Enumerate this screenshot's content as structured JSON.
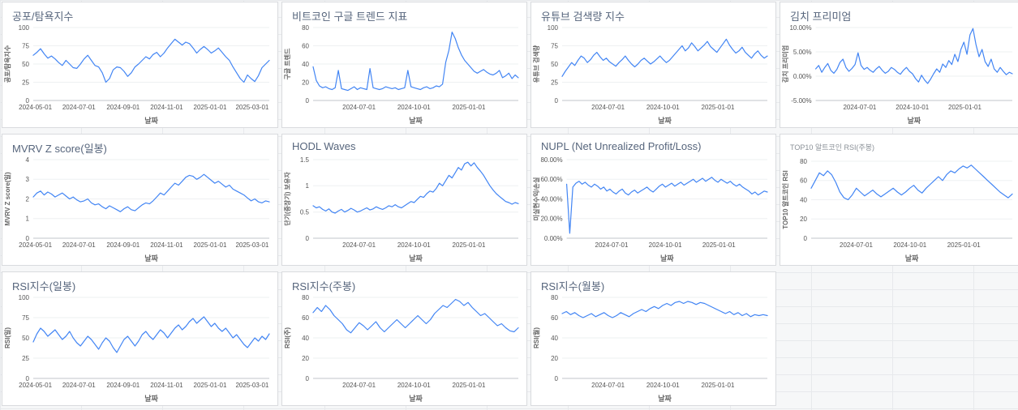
{
  "style": {
    "line_color": "#4285f4",
    "title_color": "#56657c",
    "axis_label_color": "#666666",
    "tick_label_color": "#555555",
    "card_background": "#ffffff",
    "page_background": "#f6f7f8"
  },
  "chart_data": [
    {
      "id": "fear-greed-index",
      "type": "line",
      "title": "공포/탐욕지수",
      "xlabel": "날짜",
      "ylabel": "공포/탐욕지수",
      "ylim": [
        0,
        100
      ],
      "yticks": [
        0,
        25,
        50,
        75,
        100
      ],
      "ytick_labels": [
        "0",
        "25",
        "50",
        "75",
        "100"
      ],
      "x_domain": [
        "2024-04-28",
        "2025-03-25"
      ],
      "xticks": [
        "2024-05-01",
        "2024-07-01",
        "2024-09-01",
        "2024-11-01",
        "2025-01-01",
        "2025-03-01"
      ],
      "values": [
        62,
        66,
        71,
        64,
        58,
        61,
        57,
        52,
        48,
        55,
        50,
        45,
        44,
        50,
        57,
        62,
        55,
        48,
        46,
        38,
        25,
        30,
        42,
        46,
        45,
        40,
        33,
        38,
        46,
        50,
        55,
        60,
        57,
        63,
        66,
        60,
        65,
        72,
        78,
        84,
        80,
        76,
        80,
        78,
        72,
        65,
        70,
        74,
        70,
        65,
        68,
        72,
        66,
        60,
        55,
        46,
        38,
        30,
        25,
        35,
        30,
        26,
        34,
        45,
        50,
        55
      ]
    },
    {
      "id": "bitcoin-google-trend",
      "type": "line",
      "title": "비트코인 구글 트렌드 지표",
      "xlabel": "날짜",
      "ylabel": "구글 트렌드",
      "ylim": [
        0,
        80
      ],
      "yticks": [
        0,
        20,
        40,
        60,
        80
      ],
      "ytick_labels": [
        "0",
        "20",
        "40",
        "60",
        "80"
      ],
      "x_domain": [
        "2024-04-15",
        "2025-03-25"
      ],
      "xticks": [
        "2024-07-01",
        "2024-10-01",
        "2025-01-01"
      ],
      "values": [
        37,
        22,
        16,
        14,
        15,
        13,
        12,
        14,
        33,
        13,
        12,
        11,
        13,
        15,
        12,
        14,
        13,
        12,
        35,
        14,
        13,
        12,
        13,
        15,
        14,
        13,
        14,
        12,
        13,
        14,
        33,
        15,
        14,
        13,
        12,
        14,
        15,
        13,
        14,
        16,
        15,
        18,
        42,
        55,
        75,
        68,
        58,
        50,
        44,
        40,
        36,
        32,
        30,
        32,
        34,
        31,
        29,
        28,
        30,
        33,
        25,
        27,
        30,
        24,
        28,
        25
      ]
    },
    {
      "id": "youtube-search-index",
      "type": "line",
      "title": "유튜브 검색량 지수",
      "xlabel": "날짜",
      "ylabel": "유튜브 검색량",
      "ylim": [
        0,
        100
      ],
      "yticks": [
        0,
        25,
        50,
        75,
        100
      ],
      "ytick_labels": [
        "0",
        "25",
        "50",
        "75",
        "100"
      ],
      "x_domain": [
        "2024-04-15",
        "2025-03-25"
      ],
      "xticks": [
        "2024-07-01",
        "2024-10-01",
        "2025-01-01"
      ],
      "values": [
        33,
        40,
        46,
        52,
        48,
        55,
        61,
        58,
        52,
        56,
        62,
        66,
        60,
        55,
        58,
        53,
        50,
        47,
        52,
        56,
        61,
        55,
        50,
        46,
        50,
        55,
        58,
        54,
        50,
        53,
        57,
        61,
        56,
        52,
        55,
        60,
        65,
        70,
        75,
        68,
        72,
        79,
        74,
        68,
        72,
        76,
        81,
        74,
        70,
        66,
        72,
        78,
        84,
        76,
        70,
        65,
        68,
        73,
        66,
        62,
        58,
        64,
        68,
        62,
        58,
        61
      ]
    },
    {
      "id": "kimchi-premium",
      "type": "line",
      "title": "김치 프리미엄",
      "xlabel": "날짜",
      "ylabel": "김치 프리미엄",
      "ylim": [
        -5,
        10
      ],
      "yticks": [
        -5,
        0,
        5,
        10
      ],
      "ytick_labels": [
        "-5.00%",
        "0.00%",
        "5.00%",
        "10.00%"
      ],
      "x_domain": [
        "2024-04-15",
        "2025-03-25"
      ],
      "xticks": [
        "2024-07-01",
        "2024-10-01",
        "2025-01-01"
      ],
      "values": [
        1.5,
        2.2,
        0.8,
        1.8,
        2.6,
        1.2,
        0.6,
        1.4,
        2.8,
        3.5,
        1.8,
        1.0,
        1.6,
        2.4,
        4.8,
        2.2,
        1.4,
        1.8,
        1.2,
        0.8,
        1.5,
        2.0,
        1.2,
        0.6,
        1.0,
        1.8,
        1.4,
        0.8,
        0.4,
        1.2,
        1.8,
        1.0,
        0.5,
        -0.5,
        -1.2,
        0.2,
        -0.8,
        -1.5,
        -0.6,
        0.5,
        1.5,
        0.8,
        2.5,
        1.8,
        3.2,
        2.4,
        4.5,
        3.0,
        5.5,
        7.0,
        4.5,
        8.5,
        9.8,
        6.5,
        4.0,
        5.5,
        3.0,
        2.0,
        3.5,
        1.5,
        0.8,
        1.8,
        1.0,
        0.3,
        0.8,
        0.5
      ]
    },
    {
      "id": "mvrv-z-score-daily",
      "type": "line",
      "title": "MVRV Z score(일봉)",
      "xlabel": "날짜",
      "ylabel": "MVRV Z score(일)",
      "ylim": [
        0,
        4
      ],
      "yticks": [
        0,
        1,
        2,
        3,
        4
      ],
      "ytick_labels": [
        "0",
        "1",
        "2",
        "3",
        "4"
      ],
      "x_domain": [
        "2024-04-28",
        "2025-03-25"
      ],
      "xticks": [
        "2024-05-01",
        "2024-07-01",
        "2024-09-01",
        "2024-11-01",
        "2025-01-01",
        "2025-03-01"
      ],
      "values": [
        2.1,
        2.3,
        2.4,
        2.2,
        2.35,
        2.25,
        2.1,
        2.2,
        2.3,
        2.15,
        2.0,
        2.1,
        1.95,
        1.85,
        1.9,
        2.0,
        1.8,
        1.7,
        1.75,
        1.6,
        1.5,
        1.65,
        1.55,
        1.45,
        1.35,
        1.5,
        1.6,
        1.45,
        1.4,
        1.55,
        1.7,
        1.8,
        1.75,
        1.9,
        2.1,
        2.3,
        2.2,
        2.4,
        2.6,
        2.8,
        2.7,
        2.9,
        3.1,
        3.2,
        3.15,
        3.0,
        3.1,
        3.25,
        3.1,
        2.95,
        2.8,
        2.9,
        2.75,
        2.6,
        2.7,
        2.5,
        2.4,
        2.3,
        2.2,
        2.05,
        1.9,
        2.0,
        1.85,
        1.8,
        1.9,
        1.85
      ]
    },
    {
      "id": "hodl-waves",
      "type": "line",
      "title": "HODL Waves",
      "xlabel": "날짜",
      "ylabel": "단기(중장기) 보유자",
      "ylim": [
        0,
        1.5
      ],
      "yticks": [
        0,
        0.5,
        1,
        1.5
      ],
      "ytick_labels": [
        "0",
        "0.5",
        "1",
        "1.5"
      ],
      "x_domain": [
        "2024-04-15",
        "2025-03-25"
      ],
      "xticks": [
        "2024-07-01",
        "2024-10-01",
        "2025-01-01"
      ],
      "values": [
        0.62,
        0.58,
        0.6,
        0.55,
        0.52,
        0.56,
        0.5,
        0.48,
        0.52,
        0.55,
        0.5,
        0.53,
        0.57,
        0.54,
        0.5,
        0.52,
        0.55,
        0.58,
        0.54,
        0.56,
        0.6,
        0.57,
        0.55,
        0.58,
        0.62,
        0.6,
        0.64,
        0.6,
        0.58,
        0.62,
        0.66,
        0.7,
        0.68,
        0.74,
        0.8,
        0.78,
        0.85,
        0.9,
        0.88,
        0.95,
        1.05,
        1.0,
        1.1,
        1.2,
        1.15,
        1.25,
        1.35,
        1.3,
        1.42,
        1.45,
        1.38,
        1.44,
        1.35,
        1.28,
        1.2,
        1.1,
        1.0,
        0.92,
        0.85,
        0.8,
        0.75,
        0.7,
        0.68,
        0.65,
        0.68,
        0.66
      ]
    },
    {
      "id": "nupl",
      "type": "line",
      "title": "NUPL (Net Unrealized Profit/Loss)",
      "xlabel": "날짜",
      "ylabel": "미실현수익/손실",
      "ylim": [
        0,
        80
      ],
      "yticks": [
        0,
        20,
        40,
        60,
        80
      ],
      "ytick_labels": [
        "0.00%",
        "20.00%",
        "40.00%",
        "60.00%",
        "80.00%"
      ],
      "x_domain": [
        "2024-04-15",
        "2025-03-25"
      ],
      "xticks": [
        "2024-07-01",
        "2024-10-01",
        "2025-01-01"
      ],
      "values": [
        55,
        5,
        52,
        56,
        58,
        55,
        57,
        54,
        52,
        55,
        53,
        50,
        52,
        48,
        50,
        47,
        45,
        48,
        50,
        46,
        44,
        47,
        49,
        46,
        48,
        50,
        52,
        49,
        47,
        50,
        53,
        55,
        52,
        54,
        56,
        53,
        55,
        57,
        54,
        56,
        58,
        60,
        57,
        59,
        61,
        58,
        60,
        62,
        59,
        57,
        60,
        58,
        56,
        58,
        55,
        53,
        55,
        52,
        50,
        48,
        45,
        47,
        44,
        46,
        48,
        47
      ]
    },
    {
      "id": "top10-altcoin-rsi-weekly",
      "type": "line",
      "title": "TOP10 알트코인 RSI(주봉)",
      "xlabel": "날짜",
      "ylabel": "TOP10 알트코인 RSI",
      "ylim": [
        0,
        80
      ],
      "yticks": [
        0,
        20,
        40,
        60,
        80
      ],
      "ytick_labels": [
        "0",
        "20",
        "40",
        "60",
        "80"
      ],
      "x_domain": [
        "2024-04-15",
        "2025-03-25"
      ],
      "xticks": [
        "2024-07-01",
        "2024-10-01",
        "2025-01-01"
      ],
      "values": [
        52,
        60,
        68,
        65,
        70,
        66,
        58,
        48,
        42,
        40,
        45,
        52,
        48,
        44,
        47,
        50,
        46,
        43,
        46,
        49,
        52,
        48,
        45,
        48,
        52,
        55,
        50,
        47,
        52,
        56,
        60,
        64,
        60,
        66,
        70,
        68,
        72,
        75,
        73,
        76,
        72,
        68,
        64,
        60,
        56,
        52,
        48,
        45,
        42,
        46
      ]
    },
    {
      "id": "rsi-daily",
      "type": "line",
      "title": "RSI지수(일봉)",
      "xlabel": "날짜",
      "ylabel": "RSI(일)",
      "ylim": [
        0,
        100
      ],
      "yticks": [
        0,
        25,
        50,
        75,
        100
      ],
      "ytick_labels": [
        "0",
        "25",
        "50",
        "75",
        "100"
      ],
      "x_domain": [
        "2024-04-28",
        "2025-03-25"
      ],
      "xticks": [
        "2024-05-01",
        "2024-07-01",
        "2024-09-01",
        "2024-11-01",
        "2025-01-01",
        "2025-03-01"
      ],
      "values": [
        45,
        55,
        62,
        58,
        52,
        56,
        60,
        54,
        48,
        52,
        58,
        50,
        44,
        40,
        46,
        52,
        48,
        42,
        36,
        44,
        50,
        46,
        38,
        32,
        40,
        48,
        52,
        46,
        40,
        46,
        54,
        58,
        52,
        48,
        54,
        60,
        56,
        50,
        56,
        62,
        66,
        60,
        64,
        70,
        74,
        68,
        72,
        76,
        70,
        64,
        68,
        62,
        58,
        62,
        56,
        50,
        54,
        48,
        42,
        38,
        44,
        50,
        46,
        52,
        48,
        55
      ]
    },
    {
      "id": "rsi-weekly",
      "type": "line",
      "title": "RSI지수(주봉)",
      "xlabel": "날짜",
      "ylabel": "RSI(주)",
      "ylim": [
        0,
        80
      ],
      "yticks": [
        0,
        20,
        40,
        60,
        80
      ],
      "ytick_labels": [
        "0",
        "20",
        "40",
        "60",
        "80"
      ],
      "x_domain": [
        "2024-04-15",
        "2025-03-25"
      ],
      "xticks": [
        "2024-07-01",
        "2024-10-01",
        "2025-01-01"
      ],
      "values": [
        65,
        70,
        66,
        72,
        68,
        62,
        58,
        54,
        48,
        45,
        50,
        55,
        52,
        48,
        52,
        56,
        50,
        46,
        50,
        54,
        58,
        54,
        50,
        54,
        58,
        62,
        58,
        54,
        58,
        64,
        68,
        72,
        70,
        74,
        78,
        76,
        72,
        75,
        70,
        66,
        62,
        64,
        60,
        56,
        52,
        54,
        50,
        47,
        46,
        50
      ]
    },
    {
      "id": "rsi-monthly",
      "type": "line",
      "title": "RSI지수(월봉)",
      "xlabel": "날짜",
      "ylabel": "RSI(월)",
      "ylim": [
        0,
        80
      ],
      "yticks": [
        0,
        20,
        40,
        60,
        80
      ],
      "ytick_labels": [
        "0",
        "20",
        "40",
        "60",
        "80"
      ],
      "x_domain": [
        "2024-04-15",
        "2025-03-25"
      ],
      "xticks": [
        "2024-07-01",
        "2024-10-01",
        "2025-01-01"
      ],
      "values": [
        64,
        66,
        63,
        65,
        62,
        60,
        62,
        64,
        61,
        63,
        65,
        62,
        60,
        62,
        65,
        63,
        61,
        64,
        66,
        68,
        66,
        69,
        71,
        69,
        72,
        74,
        72,
        75,
        76,
        74,
        76,
        75,
        73,
        75,
        74,
        72,
        70,
        68,
        66,
        64,
        66,
        63,
        65,
        62,
        64,
        61,
        63,
        62,
        63,
        62
      ]
    }
  ]
}
